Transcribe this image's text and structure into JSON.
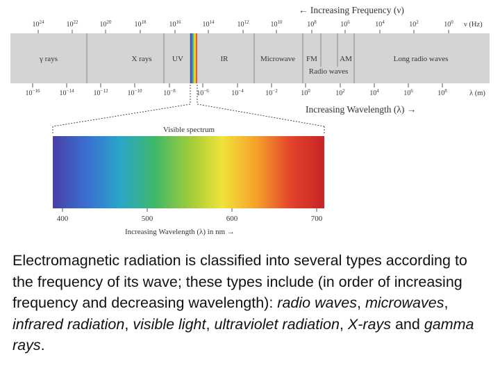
{
  "diagram": {
    "frequency_axis": {
      "title": "← Increasing Frequency (ν)",
      "unit": "ν (Hz)",
      "ticks": [
        "10^24",
        "10^22",
        "10^20",
        "10^18",
        "10^16",
        "10^14",
        "10^12",
        "10^10",
        "10^8",
        "10^6",
        "10^4",
        "10^2",
        "10^0"
      ]
    },
    "wavelength_axis": {
      "title": "Increasing Wavelength (λ) →",
      "unit": "λ (m)",
      "ticks": [
        "10^-16",
        "10^-14",
        "10^-12",
        "10^-10",
        "10^-8",
        "10^-6",
        "10^-4",
        "10^-2",
        "10^0",
        "10^2",
        "10^4",
        "10^6",
        "10^8"
      ]
    },
    "bands": [
      {
        "label": "γ rays"
      },
      {
        "label": "X rays"
      },
      {
        "label": "UV"
      },
      {
        "label": "IR"
      },
      {
        "label": "Microwave"
      },
      {
        "label": "FM"
      },
      {
        "label": "AM"
      },
      {
        "label": "Long radio waves"
      }
    ],
    "radio_waves_label": "Radio waves",
    "visible_spectrum": {
      "title": "Visible spectrum",
      "ticks": [
        "400",
        "500",
        "600",
        "700"
      ],
      "axis_title": "Increasing Wavelength (λ) in nm →"
    }
  },
  "caption": {
    "intro": "Electromagnetic radiation is classified into several types according to the frequency of its wave; these types include (in order of increasing frequency and decreasing wavelength): ",
    "items": [
      "radio waves",
      "microwaves",
      "infrared radiation",
      "visible light",
      "ultraviolet radiation",
      "X-rays",
      "gamma rays"
    ],
    "separator": ", ",
    "conjunction": " and ",
    "end": "."
  },
  "colors": {
    "band_fill": "#d4d4d4",
    "accent": "#e8e8e8",
    "visible_stops": [
      "#4a3fa8",
      "#3a6fd0",
      "#2aa6c8",
      "#3fb86a",
      "#9ccc3a",
      "#f0e23a",
      "#f6a12a",
      "#e2442a",
      "#c72426"
    ]
  }
}
